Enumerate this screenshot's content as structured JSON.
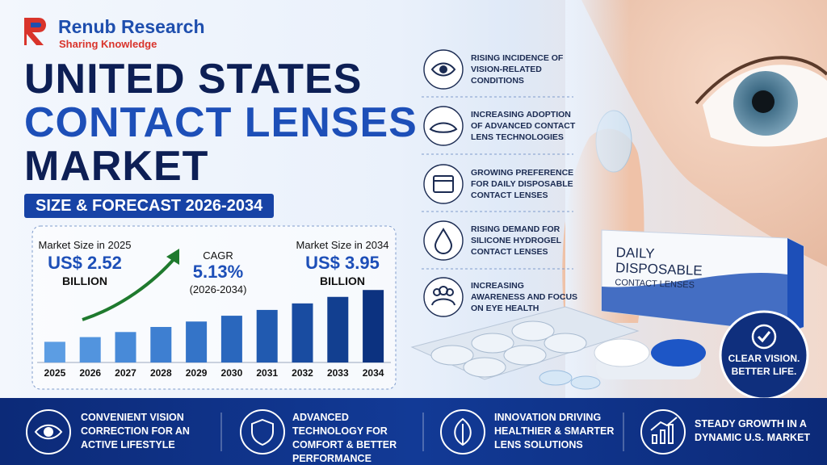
{
  "brand": {
    "name": "Renub Research",
    "tagline": "Sharing Knowledge"
  },
  "title": {
    "line1": "UNITED STATES",
    "line2": "CONTACT LENSES",
    "line3": "MARKET",
    "subtitle": "SIZE & FORECAST 2026-2034"
  },
  "stats": [
    {
      "label": "Market Size in 2025",
      "value": "US$ 2.52",
      "unit": "BILLION"
    },
    {
      "label": "CAGR",
      "value": "5.13%",
      "unit": "(2026-2034)"
    },
    {
      "label": "Market Size in 2034",
      "value": "US$ 3.95",
      "unit": "BILLION"
    }
  ],
  "chart_data": {
    "type": "bar",
    "categories": [
      "2025",
      "2026",
      "2027",
      "2028",
      "2029",
      "2030",
      "2031",
      "2032",
      "2033",
      "2034"
    ],
    "values": [
      2.52,
      2.65,
      2.79,
      2.93,
      3.08,
      3.24,
      3.4,
      3.58,
      3.76,
      3.95
    ],
    "colors": [
      "#5c9de3",
      "#5294de",
      "#488ad8",
      "#3e7fd1",
      "#3474c8",
      "#2a67bd",
      "#215ab0",
      "#194ca1",
      "#123f90",
      "#0c3280"
    ],
    "ylim": [
      1.95,
      4.2
    ]
  },
  "drivers": [
    "Rising incidence of vision-related conditions",
    "Increasing adoption of advanced contact lens technologies",
    "Growing preference for daily disposable contact lenses",
    "Rising demand for silicone hydrogel contact lenses",
    "Increasing awareness and focus on eye health"
  ],
  "product": {
    "line1": "DAILY",
    "line2": "DISPOSABLE",
    "line3": "CONTACT LENSES"
  },
  "badge": "CLEAR VISION. BETTER LIFE.",
  "footer": [
    "CONVENIENT VISION CORRECTION FOR AN ACTIVE LIFESTYLE",
    "ADVANCED TECHNOLOGY FOR COMFORT & BETTER PERFORMANCE",
    "INNOVATION DRIVING HEALTHIER & SMARTER LENS SOLUTIONS",
    "STEADY GROWTH IN A DYNAMIC U.S. MARKET"
  ]
}
